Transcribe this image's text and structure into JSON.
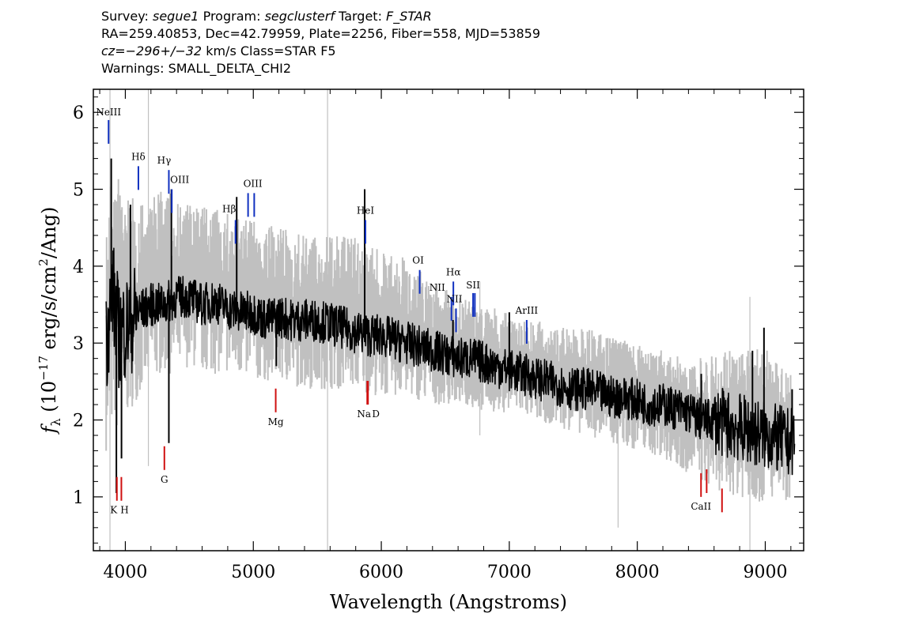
{
  "header": {
    "line1": {
      "survey_label": "Survey:",
      "survey": "segue1",
      "program_label": "Program:",
      "program": "segclusterf",
      "target_label": "Target:",
      "target": "F_STAR"
    },
    "line2": "RA=259.40853, Dec=42.79959, Plate=2256, Fiber=558, MJD=53859",
    "line3": {
      "cz": "cz=−296+/−32",
      "rest": " km/s Class=STAR F5"
    },
    "line4": "Warnings: SMALL_DELTA_CHI2"
  },
  "chart_data": {
    "type": "line",
    "xlabel": "Wavelength (Angstroms)",
    "ylabel": "fλ (10^-17 erg/s/cm^2/Ang)",
    "ylabel_parts": {
      "sym": "f",
      "sub": "λ",
      "pre": " (10",
      "exp1": "−17",
      "mid": " erg/s/cm",
      "exp2": "2",
      "post": "/Ang)"
    },
    "xlim": [
      3750,
      9300
    ],
    "ylim": [
      0.3,
      6.3
    ],
    "xticks": [
      4000,
      5000,
      6000,
      7000,
      8000,
      9000
    ],
    "xtick_labels": [
      "4000",
      "5000",
      "6000",
      "7000",
      "8000",
      "9000"
    ],
    "yticks": [
      1,
      2,
      3,
      4,
      5,
      6
    ],
    "ytick_labels": [
      "1",
      "2",
      "3",
      "4",
      "5",
      "6"
    ],
    "series": [
      {
        "role": "error_band",
        "color": "#c0c0c0",
        "x": [
          3850,
          3900,
          3950,
          4000,
          4100,
          4200,
          4300,
          4400,
          4500,
          4600,
          4800,
          5000,
          5200,
          5400,
          5600,
          5800,
          6000,
          6200,
          6400,
          6600,
          6800,
          7000,
          7200,
          7400,
          7600,
          7800,
          8000,
          8200,
          8400,
          8600,
          8800,
          9000,
          9100,
          9200
        ],
        "upper": [
          4.6,
          5.4,
          5.2,
          5.0,
          4.8,
          4.9,
          5.0,
          4.9,
          4.8,
          4.8,
          4.7,
          4.6,
          4.5,
          4.4,
          4.4,
          4.4,
          4.2,
          4.1,
          3.8,
          3.6,
          3.5,
          3.4,
          3.3,
          3.2,
          3.2,
          3.1,
          3.0,
          2.9,
          2.8,
          2.9,
          2.9,
          3.0,
          2.7,
          2.6
        ],
        "lower": [
          1.6,
          1.9,
          1.8,
          2.0,
          2.3,
          2.5,
          2.6,
          2.6,
          2.7,
          2.6,
          2.6,
          2.5,
          2.5,
          2.4,
          2.4,
          2.4,
          2.3,
          2.3,
          2.2,
          2.2,
          2.1,
          2.1,
          2.0,
          1.9,
          1.8,
          1.7,
          1.6,
          1.5,
          1.3,
          1.1,
          1.0,
          0.9,
          1.0,
          0.9
        ]
      },
      {
        "role": "flux",
        "color": "#000000",
        "x": [
          3850,
          3900,
          3950,
          4000,
          4100,
          4200,
          4300,
          4400,
          4500,
          4600,
          4700,
          4800,
          4900,
          5000,
          5100,
          5200,
          5300,
          5400,
          5500,
          5600,
          5700,
          5800,
          5900,
          6000,
          6100,
          6200,
          6300,
          6400,
          6500,
          6600,
          6700,
          6800,
          6900,
          7000,
          7100,
          7200,
          7300,
          7400,
          7500,
          7600,
          7700,
          7800,
          7900,
          8000,
          8100,
          8200,
          8300,
          8400,
          8500,
          8600,
          8700,
          8800,
          8900,
          9000,
          9100,
          9200,
          9230
        ],
        "y": [
          3.0,
          3.7,
          3.1,
          3.2,
          3.4,
          3.5,
          3.5,
          3.6,
          3.6,
          3.5,
          3.55,
          3.45,
          3.4,
          3.4,
          3.3,
          3.35,
          3.3,
          3.3,
          3.3,
          3.25,
          3.2,
          3.15,
          3.1,
          3.1,
          3.05,
          3.0,
          2.95,
          2.9,
          2.85,
          2.8,
          2.8,
          2.75,
          2.7,
          2.65,
          2.6,
          2.55,
          2.5,
          2.45,
          2.4,
          2.4,
          2.35,
          2.3,
          2.3,
          2.25,
          2.2,
          2.2,
          2.15,
          2.1,
          2.0,
          2.0,
          1.95,
          1.9,
          1.85,
          1.8,
          1.75,
          1.7,
          1.8
        ],
        "spikes": [
          {
            "x": 3890,
            "y": 5.4
          },
          {
            "x": 3930,
            "y": 1.05
          },
          {
            "x": 3970,
            "y": 1.5
          },
          {
            "x": 4040,
            "y": 4.8
          },
          {
            "x": 4340,
            "y": 1.7
          },
          {
            "x": 4360,
            "y": 5.0
          },
          {
            "x": 4870,
            "y": 4.9
          },
          {
            "x": 5180,
            "y": 2.7
          },
          {
            "x": 5870,
            "y": 5.0
          },
          {
            "x": 6560,
            "y": 3.3
          },
          {
            "x": 7000,
            "y": 3.4
          },
          {
            "x": 8500,
            "y": 2.6
          },
          {
            "x": 8900,
            "y": 2.9
          },
          {
            "x": 8990,
            "y": 3.2
          },
          {
            "x": 9210,
            "y": 2.4
          }
        ]
      }
    ],
    "emission_lines": [
      {
        "label": "NeIII",
        "x": 3869,
        "y": 5.9,
        "color": "#1030c0"
      },
      {
        "label": "Hδ",
        "x": 4102,
        "y": 5.3,
        "color": "#1030c0"
      },
      {
        "label": "Hγ",
        "x": 4340,
        "y": 5.25,
        "color": "#1030c0"
      },
      {
        "label": "OIII",
        "x": 4363,
        "y": 5.0,
        "color": "#1030c0"
      },
      {
        "label": "Hβ",
        "x": 4861,
        "y": 4.6,
        "color": "#1030c0"
      },
      {
        "label": "OIII",
        "x": 4959,
        "y": 4.95,
        "color": "#1030c0"
      },
      {
        "label": "OIII",
        "x": 5007,
        "y": 4.95,
        "color": "#1030c0"
      },
      {
        "label": "HeI",
        "x": 5876,
        "y": 4.6,
        "color": "#1030c0"
      },
      {
        "label": "OI",
        "x": 6300,
        "y": 3.95,
        "color": "#1030c0"
      },
      {
        "label": "NII",
        "x": 6548,
        "y": 3.6,
        "color": "#1030c0"
      },
      {
        "label": "Hα",
        "x": 6563,
        "y": 3.8,
        "color": "#1030c0"
      },
      {
        "label": "NII",
        "x": 6584,
        "y": 3.45,
        "color": "#1030c0"
      },
      {
        "label": "SII",
        "x": 6717,
        "y": 3.65,
        "color": "#1030c0"
      },
      {
        "label": "SII",
        "x": 6731,
        "y": 3.65,
        "color": "#1030c0"
      },
      {
        "label": "ArIII",
        "x": 7136,
        "y": 3.3,
        "color": "#1030c0"
      }
    ],
    "absorption_lines": [
      {
        "label": "K",
        "x": 3934,
        "y": 0.95,
        "color": "#d01010"
      },
      {
        "label": "H",
        "x": 3969,
        "y": 0.95,
        "color": "#d01010"
      },
      {
        "label": "G",
        "x": 4305,
        "y": 1.35,
        "color": "#d01010"
      },
      {
        "label": "Mg",
        "x": 5175,
        "y": 2.1,
        "color": "#d01010"
      },
      {
        "label": "Na",
        "x": 5890,
        "y": 2.2,
        "color": "#d01010"
      },
      {
        "label": "D",
        "x": 5896,
        "y": 2.2,
        "color": "#d01010"
      },
      {
        "label": "CaII",
        "x": 8498,
        "y": 1.0,
        "color": "#d01010"
      },
      {
        "label": "CaII",
        "x": 8542,
        "y": 1.05,
        "color": "#d01010"
      },
      {
        "label": "CaII",
        "x": 8662,
        "y": 0.8,
        "color": "#d01010"
      }
    ]
  }
}
